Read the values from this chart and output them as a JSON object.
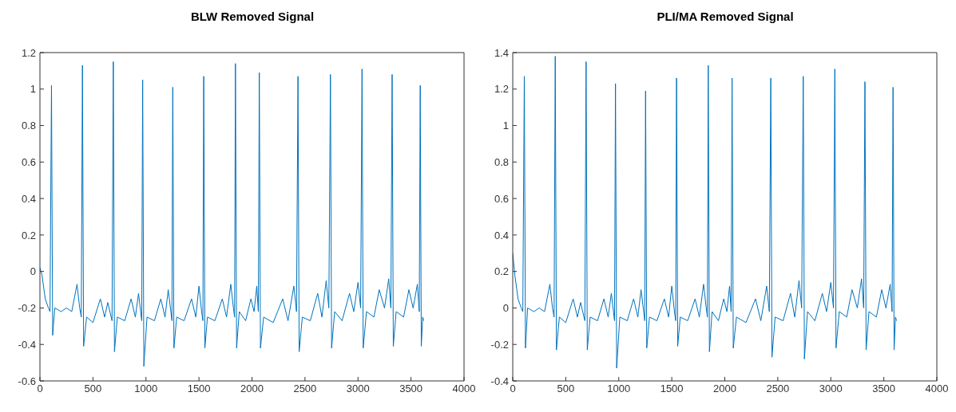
{
  "chart_data": [
    {
      "type": "line",
      "title": "BLW Removed Signal",
      "xlim": [
        0,
        4000
      ],
      "xticks": [
        0,
        500,
        1000,
        1500,
        2000,
        2500,
        3000,
        3500,
        4000
      ],
      "ylim": [
        -0.6,
        1.2
      ],
      "yticks": [
        -0.6,
        -0.4,
        -0.2,
        0,
        0.2,
        0.4,
        0.6,
        0.8,
        1,
        1.2
      ],
      "series": [
        {
          "color": "#0072bd",
          "x": [
            0,
            20,
            50,
            80,
            95,
            109,
            120,
            140,
            200,
            250,
            300,
            350,
            375,
            390,
            401,
            412,
            440,
            500,
            570,
            610,
            640,
            660,
            680,
            692,
            703,
            730,
            800,
            860,
            900,
            930,
            950,
            960,
            969,
            980,
            1010,
            1080,
            1140,
            1180,
            1210,
            1235,
            1245,
            1253,
            1264,
            1290,
            1360,
            1430,
            1470,
            1500,
            1525,
            1537,
            1545,
            1556,
            1580,
            1650,
            1720,
            1760,
            1800,
            1825,
            1836,
            1844,
            1855,
            1880,
            1940,
            1990,
            2020,
            2045,
            2060,
            2069,
            2080,
            2110,
            2200,
            2290,
            2340,
            2395,
            2420,
            2434,
            2445,
            2475,
            2550,
            2620,
            2660,
            2700,
            2725,
            2740,
            2751,
            2780,
            2850,
            2920,
            2960,
            3000,
            3025,
            3038,
            3049,
            3080,
            3150,
            3200,
            3250,
            3290,
            3310,
            3322,
            3333,
            3360,
            3430,
            3480,
            3520,
            3560,
            3578,
            3587,
            3597,
            3610,
            3620
          ],
          "values": [
            0.02,
            -0.02,
            -0.15,
            -0.2,
            -0.22,
            1.02,
            -0.35,
            -0.2,
            -0.22,
            -0.2,
            -0.22,
            -0.07,
            -0.2,
            -0.25,
            1.13,
            -0.41,
            -0.25,
            -0.28,
            -0.15,
            -0.25,
            -0.17,
            -0.22,
            -0.27,
            1.15,
            -0.44,
            -0.25,
            -0.27,
            -0.15,
            -0.25,
            -0.12,
            -0.22,
            -0.27,
            1.05,
            -0.52,
            -0.25,
            -0.27,
            -0.15,
            -0.25,
            -0.1,
            -0.22,
            -0.27,
            1.01,
            -0.42,
            -0.25,
            -0.27,
            -0.15,
            -0.25,
            -0.08,
            -0.22,
            -0.27,
            1.07,
            -0.42,
            -0.25,
            -0.27,
            -0.15,
            -0.25,
            -0.07,
            -0.2,
            -0.25,
            1.14,
            -0.42,
            -0.22,
            -0.27,
            -0.15,
            -0.22,
            -0.08,
            -0.22,
            1.09,
            -0.42,
            -0.25,
            -0.28,
            -0.15,
            -0.27,
            -0.08,
            -0.22,
            1.07,
            -0.44,
            -0.25,
            -0.27,
            -0.12,
            -0.25,
            -0.05,
            -0.2,
            1.08,
            -0.42,
            -0.22,
            -0.27,
            -0.12,
            -0.22,
            -0.06,
            -0.2,
            1.11,
            -0.42,
            -0.22,
            -0.25,
            -0.1,
            -0.2,
            -0.04,
            -0.2,
            1.08,
            -0.41,
            -0.22,
            -0.25,
            -0.1,
            -0.2,
            -0.07,
            -0.22,
            1.02,
            -0.41,
            -0.25,
            -0.27
          ]
        }
      ]
    },
    {
      "type": "line",
      "title": "PLI/MA Removed Signal",
      "xlim": [
        0,
        4000
      ],
      "xticks": [
        0,
        500,
        1000,
        1500,
        2000,
        2500,
        3000,
        3500,
        4000
      ],
      "ylim": [
        -0.4,
        1.4
      ],
      "yticks": [
        -0.4,
        -0.2,
        0,
        0.2,
        0.4,
        0.6,
        0.8,
        1,
        1.2,
        1.4
      ],
      "series": [
        {
          "color": "#0072bd",
          "x": [
            0,
            20,
            50,
            80,
            95,
            109,
            120,
            140,
            200,
            250,
            300,
            350,
            375,
            390,
            401,
            412,
            440,
            500,
            570,
            610,
            640,
            660,
            680,
            692,
            703,
            730,
            800,
            860,
            900,
            930,
            950,
            960,
            969,
            980,
            1010,
            1080,
            1140,
            1180,
            1210,
            1235,
            1245,
            1253,
            1264,
            1290,
            1360,
            1430,
            1470,
            1500,
            1525,
            1537,
            1545,
            1556,
            1580,
            1650,
            1720,
            1760,
            1800,
            1825,
            1836,
            1844,
            1855,
            1880,
            1940,
            1990,
            2020,
            2045,
            2060,
            2069,
            2080,
            2110,
            2200,
            2290,
            2340,
            2395,
            2420,
            2434,
            2445,
            2475,
            2550,
            2620,
            2660,
            2700,
            2725,
            2740,
            2751,
            2780,
            2850,
            2920,
            2960,
            3000,
            3025,
            3038,
            3049,
            3080,
            3150,
            3200,
            3250,
            3290,
            3310,
            3322,
            3333,
            3360,
            3430,
            3480,
            3520,
            3560,
            3578,
            3587,
            3597,
            3610,
            3620
          ],
          "values": [
            0.3,
            0.18,
            0.05,
            0,
            -0.02,
            1.27,
            -0.22,
            0,
            -0.02,
            0,
            -0.02,
            0.13,
            0,
            -0.05,
            1.38,
            -0.23,
            -0.05,
            -0.08,
            0.05,
            -0.05,
            0.03,
            -0.02,
            -0.07,
            1.35,
            -0.23,
            -0.05,
            -0.07,
            0.05,
            -0.05,
            0.08,
            -0.02,
            -0.07,
            1.23,
            -0.33,
            -0.05,
            -0.07,
            0.05,
            -0.05,
            0.1,
            -0.02,
            -0.07,
            1.19,
            -0.22,
            -0.05,
            -0.07,
            0.05,
            -0.05,
            0.12,
            -0.02,
            -0.07,
            1.26,
            -0.21,
            -0.05,
            -0.07,
            0.05,
            -0.05,
            0.13,
            0,
            -0.05,
            1.33,
            -0.24,
            -0.02,
            -0.07,
            0.05,
            -0.02,
            0.12,
            -0.02,
            1.26,
            -0.22,
            -0.05,
            -0.08,
            0.05,
            -0.07,
            0.12,
            -0.02,
            1.26,
            -0.27,
            -0.05,
            -0.07,
            0.08,
            -0.05,
            0.15,
            0,
            1.27,
            -0.28,
            -0.02,
            -0.07,
            0.08,
            -0.02,
            0.14,
            0,
            1.31,
            -0.22,
            -0.02,
            -0.05,
            0.1,
            0,
            0.16,
            0,
            1.24,
            -0.23,
            -0.02,
            -0.05,
            0.1,
            0,
            0.13,
            -0.02,
            1.21,
            -0.23,
            -0.05,
            -0.07
          ]
        }
      ]
    }
  ]
}
